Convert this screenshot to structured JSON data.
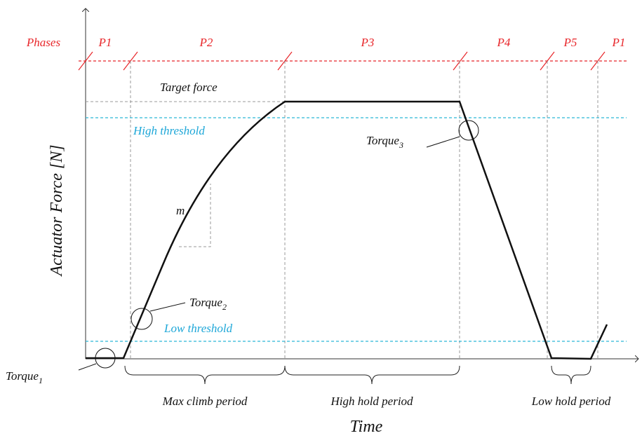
{
  "phases": {
    "title": "Phases",
    "labels": [
      "P1",
      "P2",
      "P3",
      "P4",
      "P5",
      "P1"
    ]
  },
  "annotations": {
    "target": "Target force",
    "high": "High threshold",
    "low": "Low threshold",
    "slope": "m",
    "torques": [
      {
        "label": "Torque",
        "sub": "1"
      },
      {
        "label": "Torque",
        "sub": "2"
      },
      {
        "label": "Torque",
        "sub": "3"
      }
    ]
  },
  "periods": [
    "Max climb period",
    "High hold period",
    "Low hold period"
  ],
  "axes": {
    "y": "Actuator Force [N]",
    "x": "Time"
  }
}
